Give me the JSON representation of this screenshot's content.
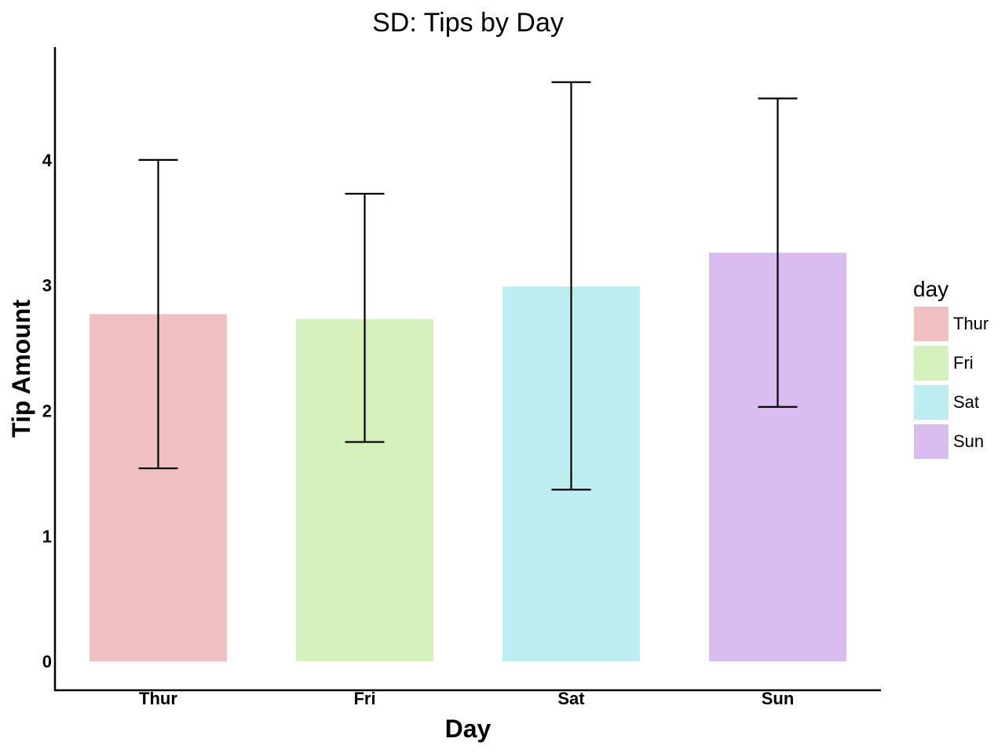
{
  "chart_data": {
    "type": "bar",
    "title": "SD: Tips by Day",
    "xlabel": "Day",
    "ylabel": "Tip Amount",
    "categories": [
      "Thur",
      "Fri",
      "Sat",
      "Sun"
    ],
    "values": [
      2.77,
      2.73,
      2.99,
      3.26
    ],
    "error_bars": {
      "type": "sd",
      "lower": [
        1.54,
        1.75,
        1.37,
        2.03
      ],
      "upper": [
        4.0,
        3.73,
        4.62,
        4.49
      ]
    },
    "colors": [
      "#f0bfbf",
      "#d4f1bd",
      "#bdedf0",
      "#d9bdf1"
    ],
    "ylim": [
      -0.23,
      4.9
    ],
    "yticks": [
      0,
      1,
      2,
      3,
      4
    ],
    "grid": false,
    "legend": {
      "title": "day",
      "placement": "right",
      "entries": [
        "Thur",
        "Fri",
        "Sat",
        "Sun"
      ]
    }
  }
}
